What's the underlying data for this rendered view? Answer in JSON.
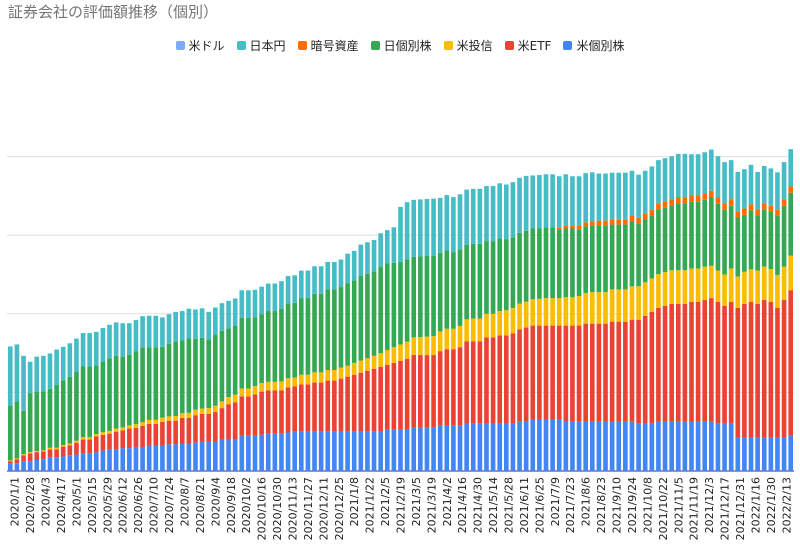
{
  "chart_data": {
    "type": "bar",
    "stacked": true,
    "title": "証券会社の評価額推移（個別）",
    "legend_position": "top",
    "grid": true,
    "ylim": [
      0,
      1000
    ],
    "y_gridlines": [
      0,
      200,
      400,
      600,
      800
    ],
    "y_axis_labels_visible": false,
    "tick_labels": [
      "2020/1/1",
      "2020/2/28",
      "2020/4/3",
      "2020/4/17",
      "2020/5/1",
      "2020/5/15",
      "2020/5/29",
      "2020/6/12",
      "2020/6/26",
      "2020/7/10",
      "2020/7/24",
      "2020/8/7",
      "2020/8/21",
      "2020/9/4",
      "2020/9/18",
      "2020/10/2",
      "2020/10/16",
      "2020/10/30",
      "2020/11/13",
      "2020/11/27",
      "2020/12/11",
      "2020/12/25",
      "2021/1/8",
      "2021/1/22",
      "2021/2/5",
      "2021/2/19",
      "2021/3/5",
      "2021/3/19",
      "2021/4/2",
      "2021/4/16",
      "2021/4/30",
      "2021/5/14",
      "2021/5/28",
      "2021/6/11",
      "2021/6/25",
      "2021/7/9",
      "2021/7/23",
      "2021/8/6",
      "2021/8/23",
      "2021/9/10",
      "2021/9/24",
      "2021/10/8",
      "2021/10/22",
      "2021/11/5",
      "2021/11/19",
      "2021/12/3",
      "2021/12/17",
      "2021/12/31",
      "2022/1/16",
      "2022/1/30",
      "2022/2/13"
    ],
    "series": [
      {
        "name": "米個別株",
        "color": "#4285f4",
        "values": [
          20,
          20,
          25,
          25,
          28,
          30,
          35,
          35,
          37,
          40,
          42,
          45,
          45,
          48,
          52,
          55,
          55,
          58,
          58,
          60,
          60,
          65,
          65,
          65,
          68,
          68,
          70,
          70,
          72,
          75,
          75,
          75,
          80,
          80,
          80,
          90,
          90,
          90,
          92,
          95,
          95,
          95,
          98,
          100,
          100,
          100,
          100,
          100,
          100,
          100,
          100,
          100,
          100,
          100,
          100,
          100,
          100,
          105,
          105,
          105,
          105,
          110,
          110,
          110,
          110,
          115,
          115,
          115,
          115,
          120,
          120,
          120,
          120,
          120,
          120,
          120,
          120,
          125,
          125,
          130,
          130,
          130,
          130,
          130,
          125,
          125,
          125,
          125,
          125,
          125,
          125,
          125,
          125,
          125,
          125,
          120,
          120,
          120,
          125,
          125,
          125,
          125,
          125,
          125,
          125,
          125,
          125,
          120,
          120,
          120,
          85,
          85,
          85,
          85,
          85,
          85,
          85,
          85,
          90
        ]
      },
      {
        "name": "米ETF",
        "color": "#ea4335",
        "values": [
          5,
          10,
          15,
          20,
          20,
          20,
          20,
          20,
          25,
          25,
          30,
          35,
          35,
          40,
          40,
          40,
          45,
          45,
          50,
          50,
          55,
          55,
          55,
          60,
          60,
          60,
          65,
          65,
          70,
          70,
          70,
          75,
          80,
          90,
          95,
          100,
          100,
          105,
          110,
          110,
          110,
          110,
          115,
          115,
          120,
          120,
          125,
          125,
          130,
          130,
          135,
          140,
          145,
          150,
          155,
          160,
          165,
          165,
          170,
          175,
          180,
          185,
          185,
          185,
          185,
          190,
          195,
          195,
          200,
          210,
          210,
          210,
          220,
          220,
          225,
          225,
          230,
          235,
          240,
          240,
          240,
          240,
          240,
          240,
          245,
          245,
          245,
          250,
          250,
          250,
          250,
          255,
          255,
          255,
          260,
          265,
          275,
          285,
          290,
          295,
          300,
          300,
          300,
          305,
          305,
          310,
          315,
          310,
          300,
          310,
          330,
          340,
          345,
          340,
          350,
          345,
          330,
          350,
          370
        ]
      },
      {
        "name": "米投信",
        "color": "#fbbc04",
        "values": [
          2,
          2,
          3,
          3,
          3,
          3,
          4,
          4,
          4,
          5,
          5,
          6,
          6,
          6,
          7,
          7,
          8,
          8,
          8,
          9,
          9,
          10,
          10,
          11,
          11,
          12,
          12,
          13,
          14,
          14,
          15,
          16,
          17,
          18,
          19,
          20,
          20,
          21,
          22,
          22,
          22,
          23,
          23,
          23,
          25,
          25,
          26,
          26,
          27,
          27,
          28,
          28,
          30,
          31,
          32,
          33,
          35,
          38,
          40,
          42,
          44,
          45,
          46,
          47,
          48,
          50,
          52,
          52,
          54,
          56,
          58,
          58,
          60,
          60,
          62,
          64,
          65,
          66,
          66,
          67,
          68,
          70,
          70,
          70,
          72,
          72,
          75,
          78,
          80,
          80,
          80,
          82,
          82,
          82,
          85,
          85,
          85,
          85,
          86,
          86,
          86,
          86,
          86,
          85,
          85,
          85,
          82,
          80,
          80,
          85,
          80,
          82,
          83,
          85,
          85,
          84,
          84,
          85,
          88
        ]
      },
      {
        "name": "日個別株",
        "color": "#34a853",
        "values": [
          140,
          145,
          110,
          150,
          150,
          150,
          150,
          160,
          165,
          170,
          175,
          180,
          180,
          175,
          180,
          185,
          185,
          180,
          180,
          185,
          190,
          185,
          185,
          180,
          185,
          190,
          185,
          190,
          180,
          180,
          175,
          180,
          180,
          175,
          175,
          180,
          180,
          175,
          175,
          180,
          180,
          185,
          190,
          190,
          195,
          195,
          200,
          200,
          205,
          205,
          205,
          210,
          210,
          215,
          215,
          215,
          220,
          220,
          215,
          210,
          210,
          205,
          205,
          205,
          205,
          200,
          200,
          195,
          195,
          190,
          190,
          190,
          185,
          185,
          185,
          180,
          180,
          180,
          180,
          180,
          180,
          180,
          180,
          175,
          175,
          175,
          170,
          170,
          170,
          170,
          170,
          165,
          165,
          165,
          165,
          160,
          160,
          160,
          165,
          165,
          165,
          170,
          170,
          170,
          170,
          170,
          175,
          170,
          165,
          160,
          150,
          145,
          150,
          140,
          145,
          145,
          150,
          155,
          160
        ]
      },
      {
        "name": "暗号資産",
        "color": "#ff6d01",
        "values": [
          0,
          0,
          0,
          0,
          0,
          0,
          0,
          0,
          0,
          0,
          0,
          0,
          0,
          0,
          0,
          0,
          0,
          0,
          0,
          0,
          0,
          0,
          0,
          0,
          0,
          0,
          0,
          0,
          0,
          0,
          0,
          0,
          0,
          0,
          0,
          0,
          0,
          0,
          0,
          0,
          0,
          0,
          0,
          0,
          0,
          0,
          0,
          0,
          0,
          0,
          0,
          0,
          0,
          0,
          0,
          0,
          0,
          0,
          0,
          0,
          0,
          0,
          0,
          0,
          0,
          0,
          0,
          0,
          0,
          0,
          0,
          0,
          0,
          0,
          0,
          0,
          0,
          0,
          0,
          0,
          0,
          0,
          0,
          5,
          8,
          8,
          10,
          10,
          10,
          12,
          12,
          12,
          12,
          12,
          14,
          14,
          14,
          15,
          15,
          15,
          15,
          16,
          16,
          16,
          16,
          16,
          16,
          16,
          16,
          16,
          16,
          16,
          16,
          16,
          16,
          16,
          16,
          16,
          16
        ]
      },
      {
        "name": "日本円",
        "color": "#46bdc6",
        "values": [
          150,
          145,
          140,
          80,
          90,
          90,
          90,
          90,
          85,
          85,
          85,
          85,
          85,
          85,
          85,
          85,
          85,
          85,
          80,
          80,
          80,
          80,
          80,
          75,
          75,
          75,
          75,
          75,
          75,
          75,
          70,
          70,
          70,
          70,
          70,
          70,
          70,
          70,
          70,
          70,
          70,
          70,
          70,
          70,
          70,
          70,
          70,
          70,
          70,
          70,
          70,
          75,
          75,
          80,
          80,
          80,
          85,
          85,
          90,
          140,
          145,
          145,
          145,
          145,
          145,
          140,
          140,
          140,
          140,
          140,
          140,
          140,
          140,
          140,
          140,
          140,
          140,
          140,
          140,
          135,
          135,
          135,
          135,
          130,
          130,
          125,
          125,
          125,
          125,
          120,
          120,
          120,
          120,
          120,
          115,
          110,
          110,
          110,
          110,
          110,
          110,
          110,
          110,
          105,
          105,
          105,
          105,
          105,
          105,
          100,
          100,
          100,
          100,
          95,
          95,
          95,
          95,
          95,
          95
        ]
      },
      {
        "name": "米ドル",
        "color": "#7baaf7",
        "values": [
          0,
          0,
          0,
          0,
          0,
          0,
          0,
          0,
          0,
          0,
          0,
          0,
          0,
          0,
          0,
          0,
          0,
          0,
          0,
          0,
          0,
          0,
          0,
          0,
          0,
          0,
          0,
          0,
          0,
          0,
          0,
          0,
          0,
          0,
          0,
          0,
          0,
          0,
          0,
          0,
          0,
          0,
          0,
          0,
          0,
          0,
          0,
          0,
          0,
          0,
          0,
          0,
          0,
          0,
          0,
          0,
          0,
          0,
          0,
          0,
          0,
          0,
          0,
          0,
          0,
          0,
          0,
          0,
          0,
          0,
          0,
          0,
          0,
          0,
          0,
          0,
          0,
          0,
          0,
          0,
          0,
          0,
          0,
          0,
          0,
          0,
          0,
          0,
          0,
          0,
          0,
          0,
          0,
          0,
          0,
          0,
          0,
          0,
          0,
          0,
          0,
          0,
          0,
          0,
          0,
          0,
          0,
          0,
          0,
          0,
          0,
          0,
          0,
          0,
          0,
          0,
          0,
          0,
          0
        ]
      }
    ]
  }
}
